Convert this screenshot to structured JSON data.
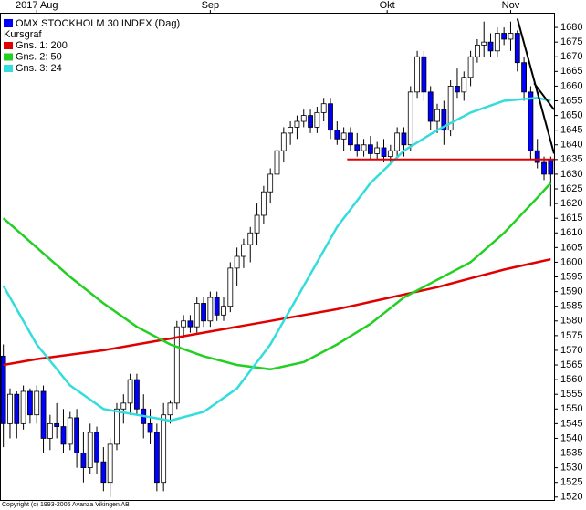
{
  "chart_data": {
    "type": "candlestick",
    "title": "OMX STOCKHOLM 30 INDEX (Dag)",
    "subtitle": "Kursgraf",
    "footer": "Copyright (c) 1993-2006 Avanza Vikingen AB",
    "up_color": "#ffffff",
    "down_color": "#0000ff",
    "xlim": [
      -0.5,
      82.5
    ],
    "xticks": [
      {
        "value": 5,
        "label": "2017 Aug"
      },
      {
        "value": 31,
        "label": "Sep"
      },
      {
        "value": 57.5,
        "label": "Okt"
      },
      {
        "value": 76,
        "label": "Nov"
      }
    ],
    "ylim": [
      1519,
      1685
    ],
    "yticks": [
      1520,
      1525,
      1530,
      1535,
      1540,
      1545,
      1550,
      1555,
      1560,
      1565,
      1570,
      1575,
      1580,
      1585,
      1590,
      1595,
      1600,
      1605,
      1610,
      1615,
      1620,
      1625,
      1630,
      1635,
      1640,
      1645,
      1650,
      1655,
      1660,
      1665,
      1670,
      1675,
      1680
    ],
    "grid": false,
    "open": [
      1568,
      1545,
      1555,
      1545,
      1556,
      1548,
      1556,
      1540,
      1545,
      1544,
      1538,
      1547,
      1535,
      1530,
      1542,
      1532,
      1525,
      1538,
      1550,
      1552,
      1560,
      1550,
      1545,
      1542,
      1525,
      1548,
      1552,
      1578,
      1580,
      1578,
      1586,
      1580,
      1588,
      1582,
      1585,
      1598,
      1602,
      1606,
      1610,
      1616,
      1624,
      1630,
      1638,
      1644,
      1646,
      1648,
      1650,
      1646,
      1651,
      1654,
      1645,
      1642,
      1644,
      1640,
      1638,
      1640,
      1637,
      1639,
      1636,
      1638,
      1644,
      1640,
      1658,
      1670,
      1658,
      1648,
      1652,
      1645,
      1660,
      1658,
      1663,
      1670,
      1674,
      1675,
      1672,
      1678,
      1676,
      1678,
      1668,
      1658,
      1638,
      1634,
      1635
    ],
    "high": [
      1572,
      1557,
      1556,
      1558,
      1557,
      1558,
      1558,
      1548,
      1552,
      1550,
      1549,
      1550,
      1542,
      1545,
      1544,
      1537,
      1540,
      1552,
      1555,
      1562,
      1562,
      1555,
      1550,
      1545,
      1552,
      1553,
      1580,
      1582,
      1582,
      1588,
      1588,
      1590,
      1590,
      1588,
      1600,
      1605,
      1608,
      1612,
      1620,
      1626,
      1632,
      1640,
      1646,
      1648,
      1650,
      1652,
      1652,
      1653,
      1656,
      1656,
      1648,
      1646,
      1646,
      1644,
      1642,
      1643,
      1641,
      1642,
      1640,
      1646,
      1646,
      1660,
      1672,
      1672,
      1660,
      1654,
      1655,
      1662,
      1666,
      1665,
      1672,
      1676,
      1682,
      1678,
      1680,
      1680,
      1682,
      1679,
      1670,
      1660,
      1642,
      1636,
      1636
    ],
    "low": [
      1537,
      1540,
      1540,
      1543,
      1545,
      1545,
      1535,
      1536,
      1540,
      1535,
      1536,
      1530,
      1525,
      1528,
      1528,
      1522,
      1520,
      1536,
      1545,
      1548,
      1548,
      1540,
      1538,
      1522,
      1522,
      1545,
      1550,
      1574,
      1576,
      1576,
      1578,
      1578,
      1580,
      1580,
      1583,
      1592,
      1598,
      1600,
      1606,
      1613,
      1620,
      1628,
      1634,
      1640,
      1642,
      1646,
      1644,
      1644,
      1648,
      1642,
      1640,
      1638,
      1638,
      1636,
      1636,
      1635,
      1635,
      1634,
      1634,
      1635,
      1636,
      1638,
      1656,
      1655,
      1645,
      1644,
      1640,
      1643,
      1656,
      1655,
      1660,
      1668,
      1670,
      1670,
      1670,
      1674,
      1672,
      1665,
      1655,
      1635,
      1632,
      1628,
      1619
    ],
    "close": [
      1545,
      1555,
      1545,
      1556,
      1548,
      1556,
      1540,
      1545,
      1544,
      1538,
      1547,
      1535,
      1530,
      1542,
      1532,
      1525,
      1538,
      1550,
      1552,
      1560,
      1550,
      1545,
      1542,
      1525,
      1548,
      1552,
      1578,
      1580,
      1578,
      1586,
      1580,
      1588,
      1582,
      1585,
      1598,
      1602,
      1606,
      1610,
      1616,
      1624,
      1630,
      1638,
      1644,
      1646,
      1648,
      1650,
      1646,
      1651,
      1654,
      1645,
      1642,
      1644,
      1640,
      1638,
      1640,
      1637,
      1639,
      1636,
      1638,
      1644,
      1640,
      1658,
      1670,
      1658,
      1648,
      1652,
      1645,
      1660,
      1658,
      1663,
      1670,
      1674,
      1675,
      1672,
      1678,
      1676,
      1678,
      1668,
      1658,
      1638,
      1634,
      1630,
      1630
    ],
    "series": [
      {
        "name": "Gns. 1: 200",
        "color": "#e00000",
        "x": [
          0,
          5,
          10,
          15,
          20,
          25,
          30,
          35,
          40,
          45,
          50,
          55,
          60,
          65,
          70,
          75,
          80,
          82
        ],
        "values": [
          1565,
          1567,
          1568.5,
          1570,
          1572,
          1574,
          1576,
          1578,
          1580,
          1582,
          1584,
          1586.5,
          1589,
          1591.5,
          1594.5,
          1597.5,
          1600,
          1601
        ]
      },
      {
        "name": "Gns. 2: 50",
        "color": "#22d022",
        "x": [
          0,
          5,
          10,
          15,
          20,
          25,
          30,
          35,
          40,
          45,
          50,
          55,
          60,
          65,
          70,
          75,
          80,
          82
        ],
        "values": [
          1615,
          1605,
          1595,
          1586,
          1578,
          1572,
          1568,
          1565,
          1563.5,
          1566,
          1572,
          1579,
          1588,
          1594,
          1600,
          1610,
          1622,
          1627
        ]
      },
      {
        "name": "Gns. 3: 24",
        "color": "#33dddd",
        "x": [
          0,
          5,
          10,
          15,
          20,
          25,
          30,
          35,
          40,
          45,
          50,
          55,
          60,
          65,
          70,
          75,
          80,
          82
        ],
        "values": [
          1592,
          1572,
          1558,
          1550,
          1548,
          1546,
          1549,
          1557,
          1572,
          1592,
          1612,
          1627,
          1638,
          1645,
          1651,
          1655,
          1656,
          1655
        ]
      }
    ],
    "lines": [
      {
        "color": "#e00000",
        "x": [
          51.5,
          82.5
        ],
        "values": [
          1635,
          1635
        ]
      },
      {
        "color": "#000000",
        "x": [
          77,
          82.5
        ],
        "values": [
          1683,
          1637
        ]
      },
      {
        "color": "#000000",
        "x": [
          79.5,
          82.5
        ],
        "values": [
          1661,
          1652
        ]
      }
    ]
  }
}
